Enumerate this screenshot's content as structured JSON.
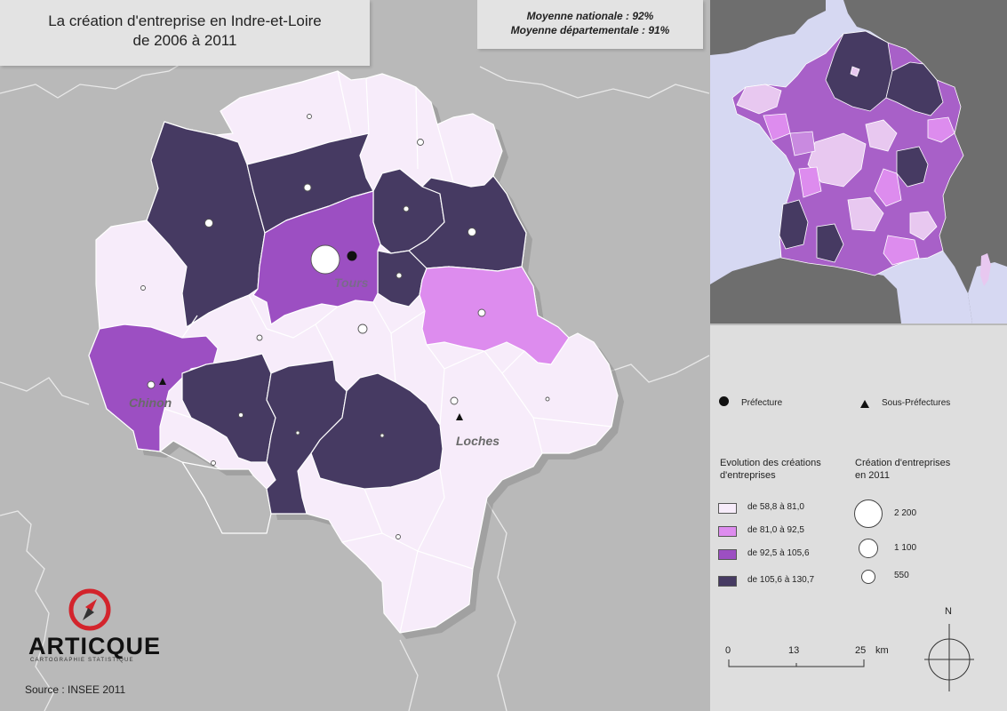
{
  "title_line1": "La création d'entreprise en Indre-et-Loire",
  "title_line2": "de 2006 à 2011",
  "stat_national": "Moyenne nationale : 92%",
  "stat_departmental": "Moyenne départementale : 91%",
  "city_labels": {
    "tours": "Tours",
    "chinon": "Chinon",
    "loches": "Loches"
  },
  "legend": {
    "prefecture": "Préfecture",
    "sous_prefectures": "Sous-Préfectures",
    "evolution_title_1": "Evolution des créations",
    "evolution_title_2": "d'entreprises",
    "classes": [
      {
        "label": "de 58,8 à 81,0",
        "color": "#f7ecfa"
      },
      {
        "label": "de 81,0 à 92,5",
        "color": "#dd8cee"
      },
      {
        "label": "de 92,5 à 105,6",
        "color": "#9c4fc2"
      },
      {
        "label": "de 105,6 à 130,7",
        "color": "#463a62"
      }
    ],
    "creation_title_1": "Création d'entreprises",
    "creation_title_2": "en 2011",
    "sizes": [
      {
        "label": "2 200",
        "value": 2200
      },
      {
        "label": "1 100",
        "value": 1100
      },
      {
        "label": "550",
        "value": 550
      }
    ]
  },
  "scale": {
    "ticks": [
      "0",
      "13",
      "25"
    ],
    "unit": "km"
  },
  "north_label": "N",
  "logo": {
    "name": "ARTICQUE",
    "tagline": "CARTOGRAPHIE STATISTIQUE"
  },
  "source": "Source : INSEE 2011",
  "colors": {
    "background": "#b9b9b9",
    "sea": "#d6d8f2",
    "land_gray": "#6e6e6e",
    "legend_panel": "#dedede"
  }
}
